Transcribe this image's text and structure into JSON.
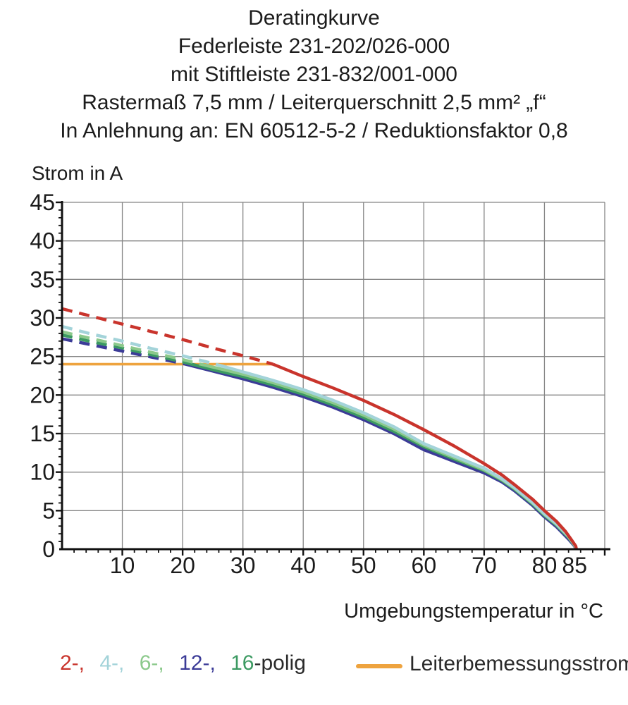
{
  "title_lines": [
    "Deratingkurve",
    "Federleiste 231-202/026-000",
    "mit Stiftleiste 231-832/001-000",
    "Rastermaß 7,5 mm / Leiterquerschnitt 2,5 mm² „f“",
    "In Anlehnung an: EN 60512-5-2 / Reduktionsfaktor 0,8"
  ],
  "chart_data": {
    "type": "line",
    "title": "Deratingkurve",
    "xlabel": "Umgebungstemperatur in °C",
    "ylabel": "Strom in A",
    "xlim": [
      0,
      90
    ],
    "ylim": [
      0,
      45
    ],
    "x_major_ticks": [
      10,
      20,
      30,
      40,
      50,
      60,
      70,
      80,
      85
    ],
    "x_minor_step": 2,
    "y_major_ticks": [
      0,
      5,
      10,
      15,
      20,
      25,
      30,
      35,
      40,
      45
    ],
    "y_minor_step": 1,
    "grid": true,
    "grid_color": "#858585",
    "axis_color": "#111111",
    "tick_label_color": "#1b1b1b",
    "rated_current": {
      "label": "Leiterbemessungsstrom",
      "value_a": 24,
      "x_range": [
        0,
        35
      ],
      "color": "#eea33e"
    },
    "series_note": "dashed where curve exceeds Leiterbemessungsstrom (24 A), solid below",
    "series": [
      {
        "name": "12-polig",
        "color": "#3b3b97",
        "points_dashed": [
          [
            0,
            27.3
          ],
          [
            5,
            26.5
          ],
          [
            10,
            25.7
          ],
          [
            15,
            24.9
          ],
          [
            20,
            24.1
          ],
          [
            20.5,
            24
          ]
        ],
        "points_solid": [
          [
            20.5,
            24
          ],
          [
            25,
            23.1
          ],
          [
            30,
            22.1
          ],
          [
            35,
            21.0
          ],
          [
            40,
            19.8
          ],
          [
            45,
            18.4
          ],
          [
            50,
            16.8
          ],
          [
            55,
            15.0
          ],
          [
            60,
            12.9
          ],
          [
            65,
            11.4
          ],
          [
            70,
            9.9
          ],
          [
            73,
            8.7
          ],
          [
            75,
            7.6
          ],
          [
            78,
            5.7
          ],
          [
            80,
            4.2
          ],
          [
            82,
            2.9
          ],
          [
            84,
            1.3
          ],
          [
            85,
            0.4
          ],
          [
            85.2,
            0
          ]
        ]
      },
      {
        "name": "16-polig",
        "color": "#3c9a62",
        "points_dashed": [
          [
            0,
            27.8
          ],
          [
            5,
            26.9
          ],
          [
            10,
            26.1
          ],
          [
            15,
            25.2
          ],
          [
            20,
            24.3
          ],
          [
            21.5,
            24
          ]
        ],
        "points_solid": [
          [
            21.5,
            24
          ],
          [
            25,
            23.3
          ],
          [
            30,
            22.4
          ],
          [
            35,
            21.3
          ],
          [
            40,
            20.1
          ],
          [
            45,
            18.7
          ],
          [
            50,
            17.1
          ],
          [
            55,
            15.3
          ],
          [
            60,
            13.3
          ],
          [
            65,
            11.7
          ],
          [
            70,
            10.2
          ],
          [
            73,
            8.9
          ],
          [
            75,
            7.8
          ],
          [
            78,
            5.9
          ],
          [
            80,
            4.4
          ],
          [
            82,
            3.1
          ],
          [
            84,
            1.5
          ],
          [
            85,
            0.5
          ],
          [
            85.25,
            0
          ]
        ]
      },
      {
        "name": "6-polig",
        "color": "#8bc98b",
        "points_dashed": [
          [
            0,
            28.2
          ],
          [
            5,
            27.3
          ],
          [
            10,
            26.4
          ],
          [
            15,
            25.5
          ],
          [
            20,
            24.6
          ],
          [
            23,
            24
          ]
        ],
        "points_solid": [
          [
            23,
            24
          ],
          [
            30,
            22.7
          ],
          [
            35,
            21.6
          ],
          [
            40,
            20.4
          ],
          [
            45,
            19.0
          ],
          [
            50,
            17.4
          ],
          [
            55,
            15.6
          ],
          [
            60,
            13.5
          ],
          [
            65,
            11.9
          ],
          [
            70,
            10.3
          ],
          [
            73,
            9.0
          ],
          [
            75,
            7.9
          ],
          [
            78,
            6.0
          ],
          [
            80,
            4.5
          ],
          [
            82,
            3.2
          ],
          [
            84,
            1.6
          ],
          [
            85,
            0.5
          ],
          [
            85.3,
            0
          ]
        ]
      },
      {
        "name": "4-polig",
        "color": "#a3d3d9",
        "points_dashed": [
          [
            0,
            28.9
          ],
          [
            5,
            27.9
          ],
          [
            10,
            27.0
          ],
          [
            15,
            26.0
          ],
          [
            20,
            25.1
          ],
          [
            25,
            24.1
          ],
          [
            25.5,
            24
          ]
        ],
        "points_solid": [
          [
            25.5,
            24
          ],
          [
            30,
            23.0
          ],
          [
            35,
            21.9
          ],
          [
            40,
            20.7
          ],
          [
            45,
            19.3
          ],
          [
            50,
            17.7
          ],
          [
            55,
            15.9
          ],
          [
            60,
            13.7
          ],
          [
            65,
            12.1
          ],
          [
            70,
            10.5
          ],
          [
            73,
            9.1
          ],
          [
            75,
            8.0
          ],
          [
            78,
            6.1
          ],
          [
            80,
            4.6
          ],
          [
            82,
            3.3
          ],
          [
            84,
            1.7
          ],
          [
            85,
            0.6
          ],
          [
            85.3,
            0
          ]
        ]
      },
      {
        "name": "2-polig",
        "color": "#c9342c",
        "points_dashed": [
          [
            0,
            31.2
          ],
          [
            5,
            30.2
          ],
          [
            10,
            29.2
          ],
          [
            15,
            28.2
          ],
          [
            20,
            27.2
          ],
          [
            25,
            26.1
          ],
          [
            30,
            25.1
          ],
          [
            35,
            24
          ]
        ],
        "points_solid": [
          [
            35,
            24
          ],
          [
            40,
            22.4
          ],
          [
            45,
            20.9
          ],
          [
            50,
            19.3
          ],
          [
            55,
            17.5
          ],
          [
            60,
            15.5
          ],
          [
            65,
            13.4
          ],
          [
            70,
            11.1
          ],
          [
            73,
            9.6
          ],
          [
            75,
            8.4
          ],
          [
            78,
            6.5
          ],
          [
            80,
            5.0
          ],
          [
            82,
            3.6
          ],
          [
            83.5,
            2.3
          ],
          [
            84.5,
            1.2
          ],
          [
            85.2,
            0.4
          ],
          [
            85.3,
            0
          ]
        ]
      }
    ]
  },
  "legend_poles": {
    "parts": [
      {
        "text": "2-,",
        "color": "#c9342c"
      },
      {
        "text": "4-,",
        "color": "#a3d3d9"
      },
      {
        "text": "6-,",
        "color": "#8bc98b"
      },
      {
        "text": "12-,",
        "color": "#3b3b97"
      },
      {
        "text": "16",
        "color": "#3c9a62"
      },
      {
        "text": "-polig",
        "color": "#2a2a2a"
      }
    ]
  },
  "legend_rated": {
    "label": "Leiterbemessungsstrom",
    "color": "#eea33e"
  }
}
